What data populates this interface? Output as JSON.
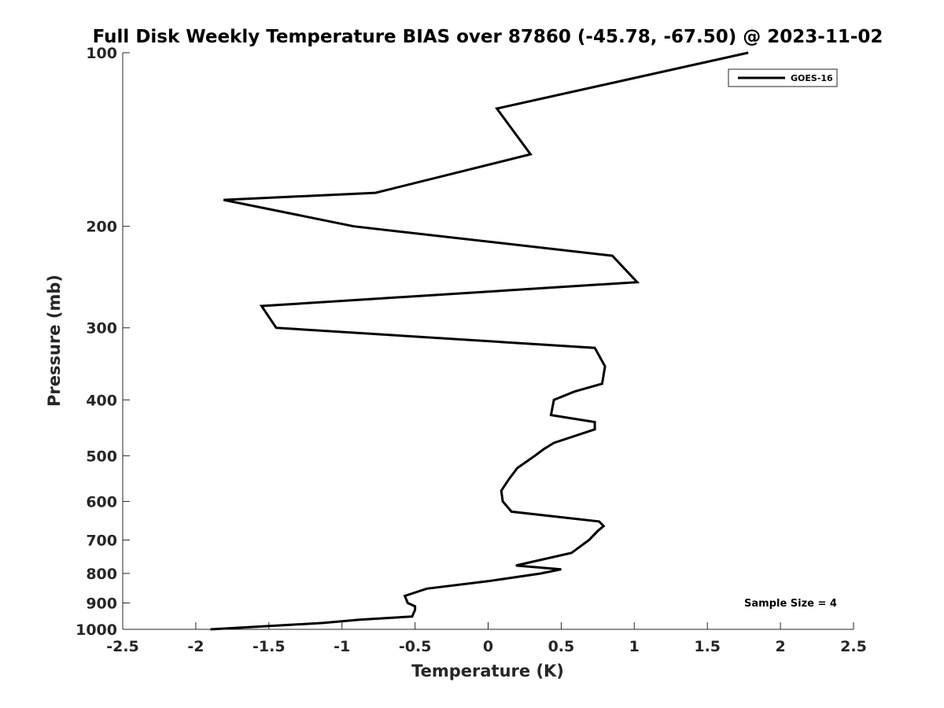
{
  "chart_data": {
    "type": "line",
    "title": "Full Disk Weekly Temperature BIAS over 87860 (-45.78, -67.50) @ 2023-11-02",
    "xlabel": "Temperature (K)",
    "ylabel": "Pressure (mb)",
    "xlim": [
      -2.5,
      2.5
    ],
    "ylim": [
      100,
      1000
    ],
    "y_scale": "log",
    "y_reversed": true,
    "x_ticks": [
      -2.5,
      -2,
      -1.5,
      -1,
      -0.5,
      0,
      0.5,
      1,
      1.5,
      2,
      2.5
    ],
    "x_tick_labels": [
      "-2.5",
      "-2",
      "-1.5",
      "-1",
      "-0.5",
      "0",
      "0.5",
      "1",
      "1.5",
      "2",
      "2.5"
    ],
    "y_ticks": [
      100,
      200,
      300,
      400,
      500,
      600,
      700,
      800,
      900,
      1000
    ],
    "y_tick_labels": [
      "100",
      "200",
      "300",
      "400",
      "500",
      "600",
      "700",
      "800",
      "900",
      "1000"
    ],
    "grid": false,
    "legend_position": "top-right",
    "series": [
      {
        "name": "GOES-16",
        "color": "#000000",
        "points": [
          [
            1.78,
            100
          ],
          [
            0.06,
            125
          ],
          [
            0.29,
            150
          ],
          [
            -0.77,
            175
          ],
          [
            -1.81,
            180
          ],
          [
            -0.92,
            200
          ],
          [
            0.85,
            225
          ],
          [
            1.02,
            250
          ],
          [
            -1.55,
            275
          ],
          [
            -1.45,
            300
          ],
          [
            0.73,
            325
          ],
          [
            0.8,
            350
          ],
          [
            0.78,
            375
          ],
          [
            0.59,
            387
          ],
          [
            0.45,
            400
          ],
          [
            0.43,
            425
          ],
          [
            0.73,
            437
          ],
          [
            0.73,
            450
          ],
          [
            0.45,
            475
          ],
          [
            0.38,
            487
          ],
          [
            0.32,
            500
          ],
          [
            0.2,
            525
          ],
          [
            0.14,
            550
          ],
          [
            0.09,
            575
          ],
          [
            0.1,
            600
          ],
          [
            0.16,
            625
          ],
          [
            0.76,
            650
          ],
          [
            0.79,
            662
          ],
          [
            0.75,
            675
          ],
          [
            0.69,
            700
          ],
          [
            0.57,
            737
          ],
          [
            0.19,
            775
          ],
          [
            0.5,
            787
          ],
          [
            0.36,
            800
          ],
          [
            0.0,
            825
          ],
          [
            -0.42,
            850
          ],
          [
            -0.57,
            875
          ],
          [
            -0.55,
            900
          ],
          [
            -0.5,
            912
          ],
          [
            -0.5,
            925
          ],
          [
            -0.52,
            950
          ],
          [
            -0.88,
            962
          ],
          [
            -1.13,
            975
          ],
          [
            -1.9,
            1000
          ]
        ]
      }
    ],
    "annotations": [
      "Sample Size = 4"
    ]
  }
}
